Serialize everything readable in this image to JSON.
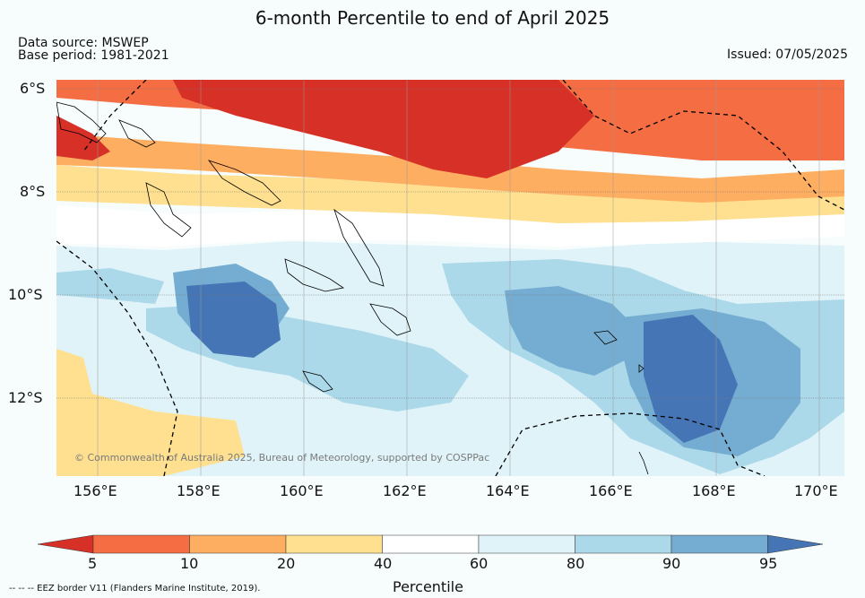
{
  "title": "6-month Percentile to end of April 2025",
  "data_source": "Data source: MSWEP",
  "base_period": "Base period: 1981-2021",
  "issued": "Issued: 07/05/2025",
  "copyright": "© Commonwealth of Australia 2025, Bureau of Meteorology, supported by COSPPac",
  "lat_labels": [
    "6°S",
    "8°S",
    "10°S",
    "12°S"
  ],
  "lon_labels": [
    "156°E",
    "158°E",
    "160°E",
    "162°E",
    "164°E",
    "166°E",
    "168°E",
    "170°E"
  ],
  "colorbar": {
    "label": "Percentile",
    "ticks": [
      "5",
      "10",
      "20",
      "40",
      "60",
      "80",
      "90",
      "95"
    ],
    "colors": [
      "#d73027",
      "#f46d43",
      "#fdae61",
      "#fee090",
      "#ffffff",
      "#e0f3f8",
      "#abd9e9",
      "#74add1",
      "#4575b4"
    ]
  },
  "eez_note": "--  --  -- EEZ border V11 (Flanders Marine Institute, 2019)."
}
